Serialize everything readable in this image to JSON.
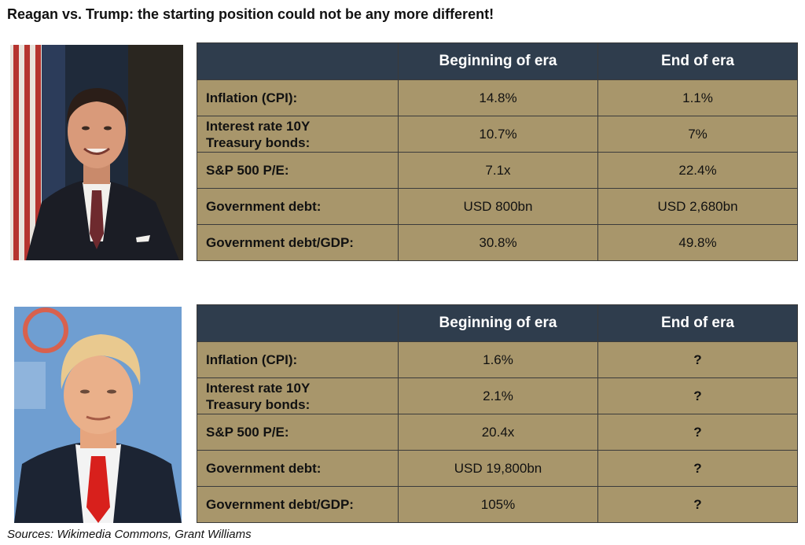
{
  "title": "Reagan vs. Trump: the starting position could not be any more different!",
  "tables": [
    {
      "headers": [
        "",
        "Beginning of era",
        "End of era"
      ],
      "rows": [
        {
          "label_line1": "Inflation (CPI):",
          "label_line2": "",
          "begin": "14.8%",
          "end": "1.1%"
        },
        {
          "label_line1": "Interest rate 10Y",
          "label_line2": "Treasury bonds:",
          "begin": "10.7%",
          "end": "7%"
        },
        {
          "label_line1": "S&P 500 P/E:",
          "label_line2": "",
          "begin": "7.1x",
          "end": "22.4%"
        },
        {
          "label_line1": "Government debt:",
          "label_line2": "",
          "begin": "USD 800bn",
          "end": "USD 2,680bn"
        },
        {
          "label_line1": "Government debt/GDP:",
          "label_line2": "",
          "begin": "30.8%",
          "end": "49.8%"
        }
      ]
    },
    {
      "headers": [
        "",
        "Beginning of era",
        "End of era"
      ],
      "rows": [
        {
          "label_line1": "Inflation (CPI):",
          "label_line2": "",
          "begin": "1.6%",
          "end": "?"
        },
        {
          "label_line1": "Interest rate 10Y",
          "label_line2": "Treasury bonds:",
          "begin": "2.1%",
          "end": "?"
        },
        {
          "label_line1": "S&P 500 P/E:",
          "label_line2": "",
          "begin": "20.4x",
          "end": "?"
        },
        {
          "label_line1": "Government debt:",
          "label_line2": "",
          "begin": "USD 19,800bn",
          "end": "?"
        },
        {
          "label_line1": "Government debt/GDP:",
          "label_line2": "",
          "begin": "105%",
          "end": "?"
        }
      ]
    }
  ],
  "source": "Sources: Wikimedia Commons, Grant Williams",
  "colors": {
    "header_bg": "#2f3d4d",
    "cell_bg": "#a8966b",
    "question_mark": "#cc2b1f"
  }
}
